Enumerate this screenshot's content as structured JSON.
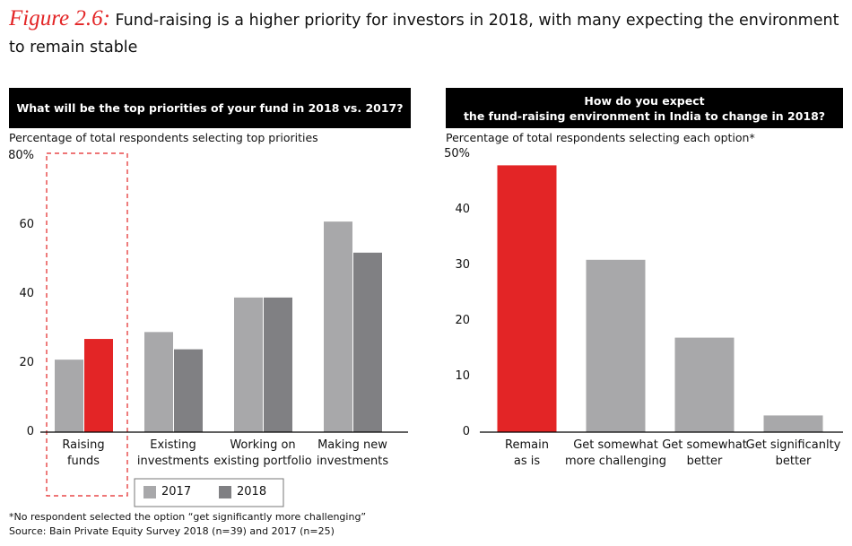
{
  "figure_label": "Figure 2.6:",
  "title": "Fund-raising is a higher priority for investors in 2018, with many expecting the environment to remain stable",
  "chart_data": [
    {
      "type": "grouped_bar",
      "header": "What will be the top priorities of your fund in 2018 vs. 2017?",
      "subtitle": "Percentage of total respondents selecting top priorities",
      "categories": [
        "Raising\nfunds",
        "Existing\ninvestments",
        "Working on\nexisting portfolio",
        "Making new\ninvestments"
      ],
      "series": [
        {
          "name": "2017",
          "color": "#a8a8aa",
          "values": [
            21,
            29,
            39,
            61
          ]
        },
        {
          "name": "2018",
          "color": "#808083",
          "colors": [
            "#e32526",
            "#808083",
            "#808083",
            "#808083"
          ],
          "values": [
            27,
            24,
            39,
            52
          ]
        }
      ],
      "ylim": [
        0,
        80
      ],
      "yticks": [
        0,
        20,
        40,
        60,
        {
          "value": 80,
          "label": "80%"
        }
      ],
      "grid": false,
      "legend": "bottom"
    },
    {
      "type": "bar",
      "header": "How do you expect\nthe fund-raising environment in India to change in 2018?",
      "subtitle": "Percentage of total respondents selecting each option*",
      "categories": [
        "Remain\nas is",
        "Get somewhat\nmore challenging",
        "Get somewhat\nbetter",
        "Get significanlty\nbetter"
      ],
      "values": [
        48,
        31,
        17,
        3
      ],
      "colors": [
        "#e32526",
        "#a8a8aa",
        "#a8a8aa",
        "#a8a8aa"
      ],
      "ylim": [
        0,
        50
      ],
      "yticks": [
        0,
        10,
        20,
        30,
        40,
        {
          "value": 50,
          "label": "50%"
        }
      ],
      "grid": false
    }
  ],
  "notes": [
    "*No respondent selected the option “get significantly more challenging”",
    "Source: Bain Private Equity Survey 2018 (n=39) and 2017 (n=25)"
  ]
}
